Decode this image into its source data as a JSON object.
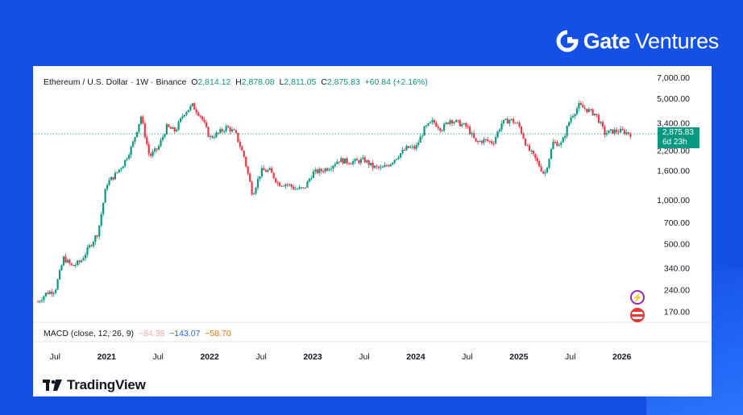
{
  "brand": {
    "name": "Gate",
    "sub": "Ventures",
    "icon": "gate-logo-icon",
    "color": "#ffffff"
  },
  "legend": {
    "symbol": "Ethereum / U.S. Dollar · 1W · Binance",
    "o_label": "O",
    "o": "2,814.12",
    "h_label": "H",
    "h": "2,878.08",
    "l_label": "L",
    "l": "2,811.05",
    "c_label": "C",
    "c": "2,875.83",
    "change": "+60.84 (+2.16%)"
  },
  "price_tag": {
    "price": "2,875.83",
    "countdown": "6d 23h"
  },
  "macd": {
    "label": "MACD (close, 12, 26, 9)",
    "v1": "−84.38",
    "v2": "−143.07",
    "v3": "−58.70"
  },
  "footer": {
    "logo": "tradingview-logo-icon",
    "name": "TradingView"
  },
  "icons": [
    "lightning-icon",
    "us-flag-icon"
  ],
  "colors": {
    "up": "#089981",
    "down": "#f23645",
    "bg": "#1550e6"
  },
  "chart_data": {
    "type": "candlestick",
    "title": "Ethereum / U.S. Dollar · 1W · Binance",
    "y_scale": "log",
    "y_ticks": [
      170,
      240,
      340,
      500,
      700,
      1000,
      1600,
      2200,
      3400,
      5000,
      7000
    ],
    "y_tick_labels": [
      "170.00",
      "240.00",
      "340.00",
      "500.00",
      "700.00",
      "1,000.00",
      "1,600.00",
      "2,200.00",
      "3,400.00",
      "5,000.00",
      "7,000.00"
    ],
    "ylim": [
      150,
      7600
    ],
    "x_tick_labels": [
      {
        "label": "Jul",
        "date": "2020-07"
      },
      {
        "label": "2021",
        "date": "2021-01",
        "bold": true
      },
      {
        "label": "Jul",
        "date": "2021-07"
      },
      {
        "label": "2022",
        "date": "2022-01",
        "bold": true
      },
      {
        "label": "Jul",
        "date": "2022-07"
      },
      {
        "label": "2023",
        "date": "2023-01",
        "bold": true
      },
      {
        "label": "Jul",
        "date": "2023-07"
      },
      {
        "label": "2024",
        "date": "2024-01",
        "bold": true
      },
      {
        "label": "Jul",
        "date": "2024-07"
      },
      {
        "label": "2025",
        "date": "2025-01",
        "bold": true
      },
      {
        "label": "Jul",
        "date": "2025-07"
      },
      {
        "label": "2026",
        "date": "2026-01",
        "bold": true
      }
    ],
    "xlim": [
      "2020-05",
      "2026-03"
    ],
    "last_price": 2875.83,
    "grid": false,
    "price_path": [
      [
        "2020-05",
        200
      ],
      [
        "2020-06",
        230
      ],
      [
        "2020-07",
        240
      ],
      [
        "2020-08",
        400
      ],
      [
        "2020-09",
        350
      ],
      [
        "2020-10",
        380
      ],
      [
        "2020-11",
        480
      ],
      [
        "2020-12",
        600
      ],
      [
        "2021-01",
        1300
      ],
      [
        "2021-02",
        1500
      ],
      [
        "2021-03",
        1800
      ],
      [
        "2021-04",
        2400
      ],
      [
        "2021-05",
        3800
      ],
      [
        "2021-06",
        2000
      ],
      [
        "2021-07",
        2300
      ],
      [
        "2021-08",
        3200
      ],
      [
        "2021-09",
        3000
      ],
      [
        "2021-10",
        4000
      ],
      [
        "2021-11",
        4500
      ],
      [
        "2021-12",
        3800
      ],
      [
        "2022-01",
        2700
      ],
      [
        "2022-02",
        2900
      ],
      [
        "2022-03",
        3200
      ],
      [
        "2022-04",
        2900
      ],
      [
        "2022-05",
        2000
      ],
      [
        "2022-06",
        1100
      ],
      [
        "2022-07",
        1600
      ],
      [
        "2022-08",
        1600
      ],
      [
        "2022-09",
        1300
      ],
      [
        "2022-10",
        1300
      ],
      [
        "2022-11",
        1200
      ],
      [
        "2022-12",
        1200
      ],
      [
        "2023-01",
        1550
      ],
      [
        "2023-02",
        1600
      ],
      [
        "2023-03",
        1700
      ],
      [
        "2023-04",
        1900
      ],
      [
        "2023-05",
        1850
      ],
      [
        "2023-06",
        1850
      ],
      [
        "2023-07",
        1900
      ],
      [
        "2023-08",
        1700
      ],
      [
        "2023-09",
        1650
      ],
      [
        "2023-10",
        1800
      ],
      [
        "2023-11",
        2050
      ],
      [
        "2023-12",
        2300
      ],
      [
        "2024-01",
        2300
      ],
      [
        "2024-02",
        3100
      ],
      [
        "2024-03",
        3500
      ],
      [
        "2024-04",
        3100
      ],
      [
        "2024-05",
        3600
      ],
      [
        "2024-06",
        3400
      ],
      [
        "2024-07",
        3200
      ],
      [
        "2024-08",
        2500
      ],
      [
        "2024-09",
        2600
      ],
      [
        "2024-10",
        2500
      ],
      [
        "2024-11",
        3400
      ],
      [
        "2024-12",
        3600
      ],
      [
        "2025-01",
        3300
      ],
      [
        "2025-02",
        2300
      ],
      [
        "2025-03",
        1900
      ],
      [
        "2025-04",
        1500
      ],
      [
        "2025-05",
        2500
      ],
      [
        "2025-06",
        2450
      ],
      [
        "2025-07",
        3700
      ],
      [
        "2025-08",
        4500
      ],
      [
        "2025-09",
        4200
      ],
      [
        "2025-10",
        3900
      ],
      [
        "2025-11",
        2900
      ],
      [
        "2025-12",
        3000
      ],
      [
        "2026-01",
        3000
      ],
      [
        "2026-02",
        2875
      ]
    ]
  }
}
